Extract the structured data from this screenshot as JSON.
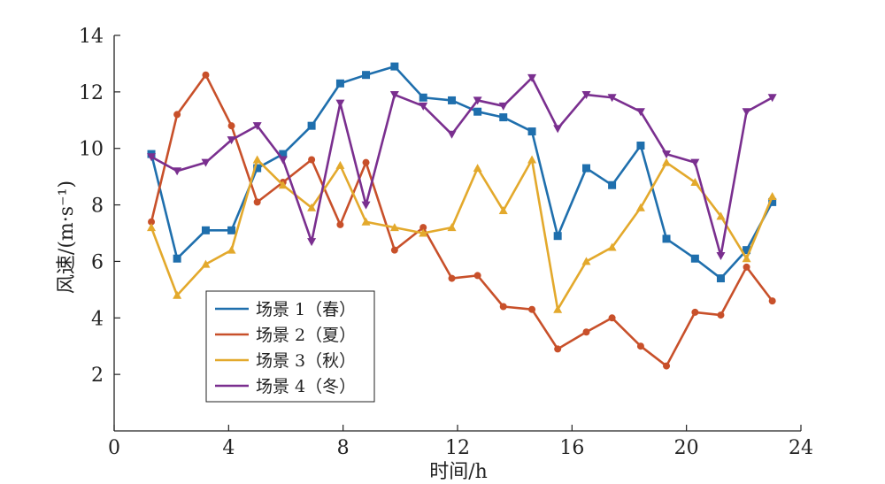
{
  "chart_data": {
    "type": "line",
    "xlabel": "时间/h",
    "ylabel": "风速/(m·s⁻¹)",
    "xlim": [
      0,
      24
    ],
    "ylim": [
      0,
      14
    ],
    "xticks": [
      0,
      4,
      8,
      12,
      16,
      20,
      24
    ],
    "yticks": [
      2,
      4,
      6,
      8,
      10,
      12,
      14
    ],
    "grid": false,
    "legend_position": "lower-left",
    "x": [
      1.3,
      2.2,
      3.2,
      4.1,
      5.0,
      5.9,
      6.9,
      7.9,
      8.8,
      9.8,
      10.8,
      11.8,
      12.7,
      13.6,
      14.6,
      15.5,
      16.5,
      17.4,
      18.4,
      19.3,
      20.3,
      21.2,
      22.1,
      23.0
    ],
    "series": [
      {
        "name": "场景 1（春）",
        "color": "#1f6fad",
        "marker": "square",
        "values": [
          9.8,
          6.1,
          7.1,
          7.1,
          9.3,
          9.8,
          10.8,
          12.3,
          12.6,
          12.9,
          11.8,
          11.7,
          11.3,
          11.1,
          10.6,
          6.9,
          9.3,
          8.7,
          10.1,
          6.8,
          6.1,
          5.4,
          6.4,
          8.1
        ]
      },
      {
        "name": "场景 2（夏）",
        "color": "#c8502a",
        "marker": "circle",
        "values": [
          7.4,
          11.2,
          12.6,
          10.8,
          8.1,
          8.8,
          9.6,
          7.3,
          9.5,
          6.4,
          7.2,
          5.4,
          5.5,
          4.4,
          4.3,
          2.9,
          3.5,
          4.0,
          3.0,
          2.3,
          4.2,
          4.1,
          5.8,
          4.6
        ]
      },
      {
        "name": "场景 3（秋）",
        "color": "#e3a92c",
        "marker": "triangle-up",
        "values": [
          7.2,
          4.8,
          5.9,
          6.4,
          9.6,
          8.7,
          7.9,
          9.4,
          7.4,
          7.2,
          7.0,
          7.2,
          9.3,
          7.8,
          9.6,
          4.3,
          6.0,
          6.5,
          7.9,
          9.5,
          8.8,
          7.6,
          6.1,
          8.3
        ]
      },
      {
        "name": "场景 4（冬）",
        "color": "#7a2f8f",
        "marker": "triangle-down",
        "values": [
          9.7,
          9.2,
          9.5,
          10.3,
          10.8,
          9.6,
          6.7,
          11.6,
          8.0,
          11.9,
          11.5,
          10.5,
          11.7,
          11.5,
          12.5,
          10.7,
          11.9,
          11.8,
          11.3,
          9.8,
          9.5,
          6.2,
          11.3,
          11.8
        ]
      }
    ]
  }
}
